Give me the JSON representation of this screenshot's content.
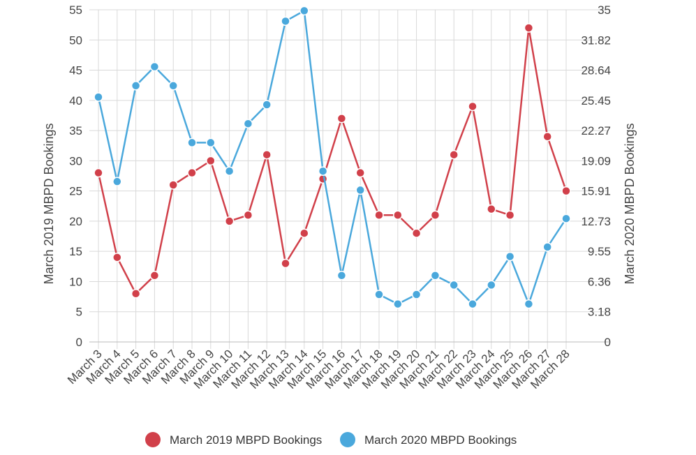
{
  "chart_data": {
    "type": "line",
    "categories": [
      "March 3",
      "March 4",
      "March 5",
      "March 6",
      "March 7",
      "March 8",
      "March 9",
      "March 10",
      "March 11",
      "March 12",
      "March 13",
      "March 14",
      "March 15",
      "March 16",
      "March 17",
      "March 18",
      "March 19",
      "March 20",
      "March 21",
      "March 22",
      "March 23",
      "March 24",
      "March 25",
      "March 26",
      "March 27",
      "March 28"
    ],
    "y_left": {
      "label": "March 2019 MBPD Bookings",
      "range": [
        0,
        55
      ],
      "ticks": [
        "0",
        "5",
        "10",
        "15",
        "20",
        "25",
        "30",
        "35",
        "40",
        "45",
        "50",
        "55"
      ]
    },
    "y_right": {
      "label": "March 2020 MBPD Bookings",
      "range": [
        0,
        35
      ],
      "ticks": [
        "0",
        "3.18",
        "6.36",
        "9.55",
        "12.73",
        "15.91",
        "19.09",
        "22.27",
        "25.45",
        "28.64",
        "31.82",
        "35"
      ]
    },
    "series": [
      {
        "name": "March 2019 MBPD Bookings",
        "axis": "left",
        "color": "#d1404a",
        "values": [
          28,
          14,
          8,
          11,
          26,
          28,
          30,
          20,
          21,
          31,
          13,
          18,
          27,
          37,
          28,
          21,
          21,
          18,
          21,
          31,
          39,
          22,
          21,
          52,
          34,
          25
        ]
      },
      {
        "name": "March 2020 MBPD Bookings",
        "axis": "right",
        "color": "#4aa8dc",
        "values": [
          25.8,
          16.9,
          27,
          29,
          27,
          21,
          21,
          18,
          23,
          25,
          33.8,
          34.9,
          18,
          7,
          16,
          5,
          4,
          5,
          7,
          6,
          4,
          6,
          9,
          4,
          10,
          13
        ]
      }
    ],
    "grid": true,
    "legend_position": "bottom-center"
  }
}
